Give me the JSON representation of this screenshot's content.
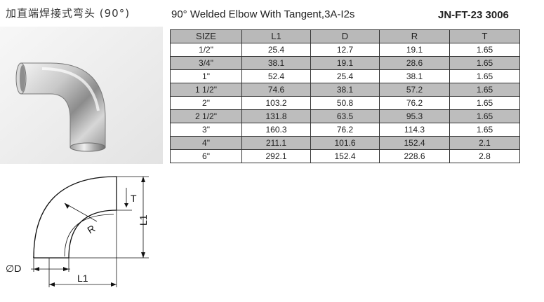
{
  "header": {
    "cn_title": "加直端焊接式弯头 (90°)",
    "en_title": "90° Welded Elbow With Tangent,3A-I2s",
    "code": "JN-FT-23 3006"
  },
  "drawing_labels": {
    "t": "T",
    "l1_vertical": "L1",
    "r": "R",
    "d": "∅D",
    "l1_horizontal": "L1"
  },
  "table": {
    "columns": [
      "SIZE",
      "L1",
      "D",
      "R",
      "T"
    ],
    "rows": [
      [
        "1/2\"",
        "25.4",
        "12.7",
        "19.1",
        "1.65"
      ],
      [
        "3/4\"",
        "38.1",
        "19.1",
        "28.6",
        "1.65"
      ],
      [
        "1\"",
        "52.4",
        "25.4",
        "38.1",
        "1.65"
      ],
      [
        "1 1/2\"",
        "74.6",
        "38.1",
        "57.2",
        "1.65"
      ],
      [
        "2\"",
        "103.2",
        "50.8",
        "76.2",
        "1.65"
      ],
      [
        "2 1/2\"",
        "131.8",
        "63.5",
        "95.3",
        "1.65"
      ],
      [
        "3\"",
        "160.3",
        "76.2",
        "114.3",
        "1.65"
      ],
      [
        "4\"",
        "211.1",
        "101.6",
        "152.4",
        "2.1"
      ],
      [
        "6\"",
        "292.1",
        "152.4",
        "228.6",
        "2.8"
      ]
    ]
  },
  "colors": {
    "header_bg": "#b9b9b9",
    "alt_row_bg": "#bdbdbd",
    "border": "#333333"
  }
}
